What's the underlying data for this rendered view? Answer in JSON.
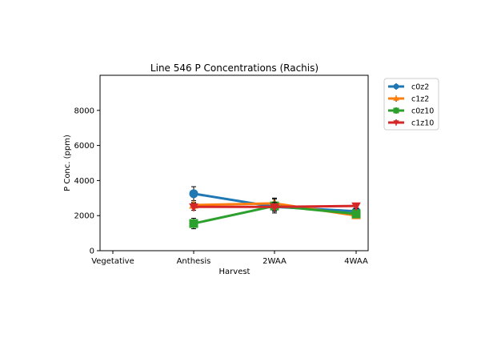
{
  "chart_data": {
    "type": "line",
    "title": "Line 546 P Concentrations (Rachis)",
    "xlabel": "Harvest",
    "ylabel": "P Conc. (ppm)",
    "categories": [
      "Vegetative",
      "Anthesis",
      "2WAA",
      "4WAA"
    ],
    "ylim": [
      0,
      10000
    ],
    "yticks": [
      0,
      2000,
      4000,
      6000,
      8000
    ],
    "legend_position": "outside-right",
    "grid": false,
    "series": [
      {
        "name": "c0z2",
        "color": "#1f77b4",
        "marker": "circle",
        "values": [
          null,
          3250,
          2500,
          2250
        ],
        "errors": [
          null,
          400,
          250,
          150
        ]
      },
      {
        "name": "c1z2",
        "color": "#ff7f0e",
        "marker": "triangle-up",
        "values": [
          null,
          2600,
          2700,
          2000
        ],
        "errors": [
          null,
          150,
          300,
          100
        ]
      },
      {
        "name": "c0z10",
        "color": "#2ca02c",
        "marker": "square",
        "values": [
          null,
          1550,
          2550,
          2100
        ],
        "errors": [
          null,
          300,
          400,
          200
        ]
      },
      {
        "name": "c1z10",
        "color": "#d62728",
        "marker": "triangle-down",
        "values": [
          null,
          2500,
          2500,
          2550
        ],
        "errors": [
          null,
          200,
          250,
          150
        ]
      }
    ]
  }
}
